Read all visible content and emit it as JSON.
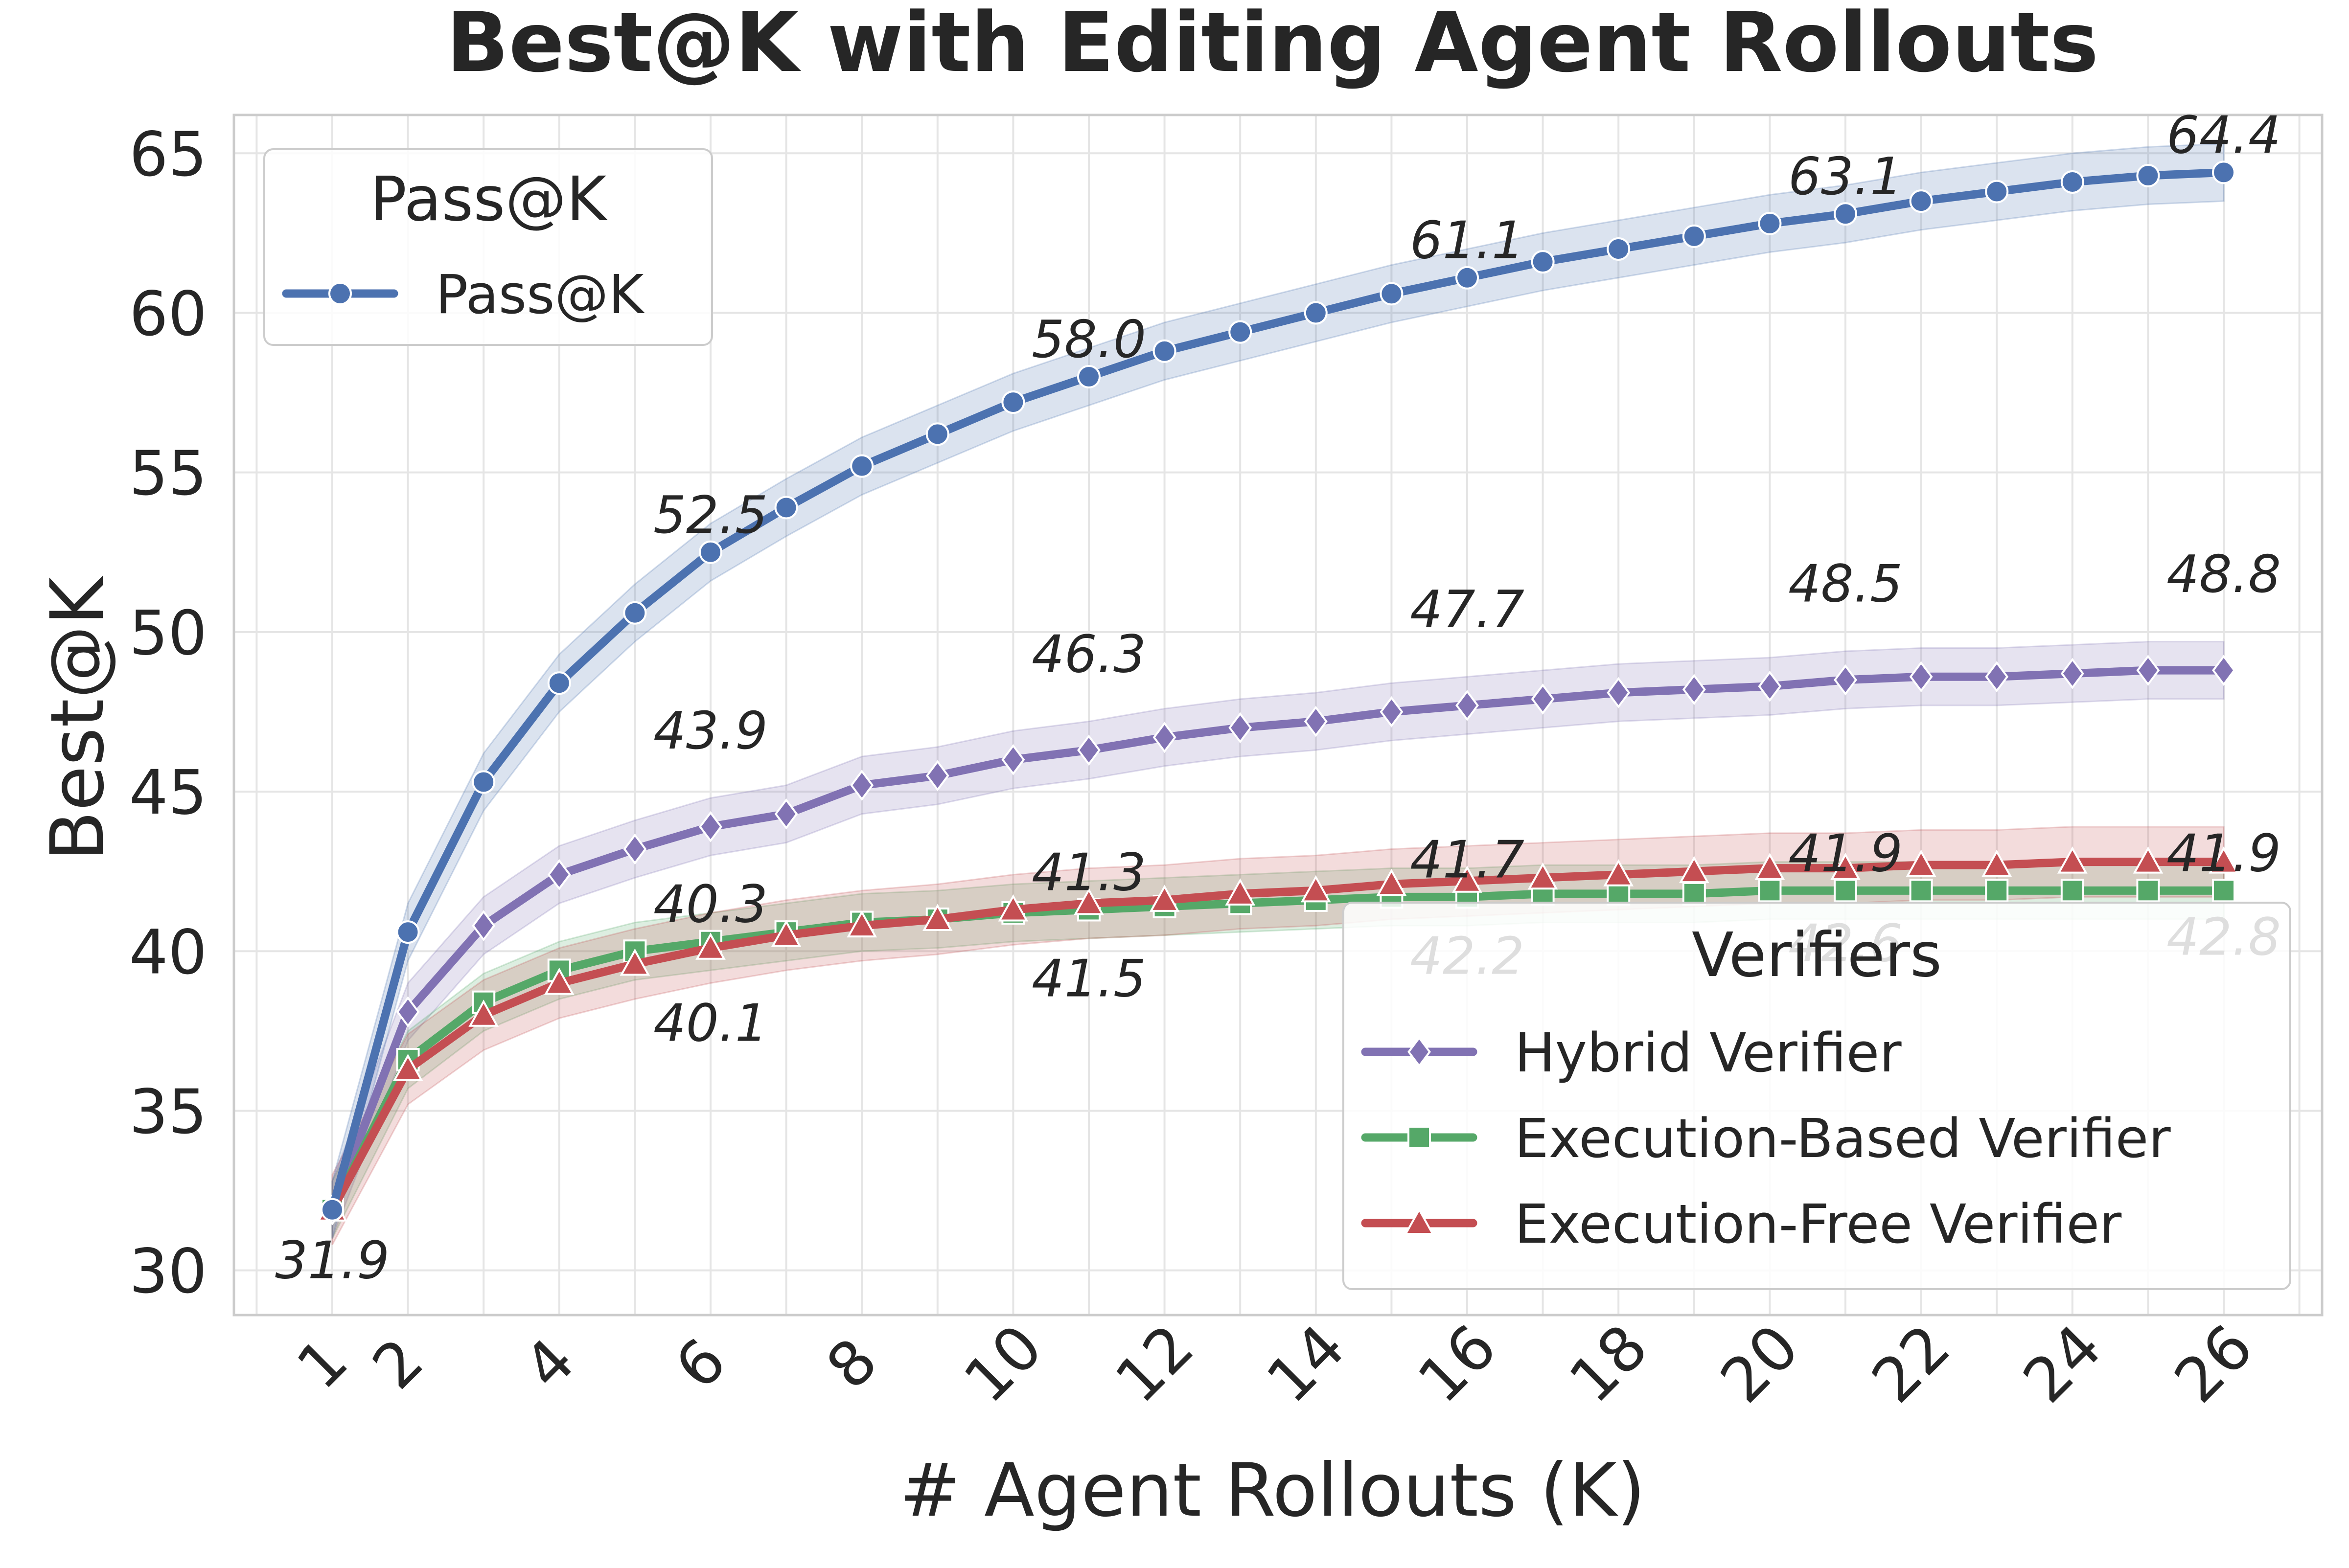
{
  "chart_data": {
    "type": "line",
    "title": "Best@K with Editing Agent Rollouts",
    "xlabel": "# Agent Rollouts (K)",
    "ylabel": "Best@K",
    "xlim": [
      -0.3,
      27.3
    ],
    "ylim": [
      28.6,
      66.2
    ],
    "xticks": [
      1,
      2,
      4,
      6,
      8,
      10,
      12,
      14,
      16,
      18,
      20,
      22,
      24,
      26
    ],
    "yticks": [
      30,
      35,
      40,
      45,
      50,
      55,
      60,
      65
    ],
    "grid": true,
    "x": [
      1,
      2,
      3,
      4,
      5,
      6,
      7,
      8,
      9,
      10,
      11,
      12,
      13,
      14,
      15,
      16,
      17,
      18,
      19,
      20,
      21,
      22,
      23,
      24,
      25,
      26
    ],
    "series": [
      {
        "name": "Pass@K",
        "group": "Pass@K",
        "color": "#4c72b0",
        "marker": "circle",
        "values": [
          31.9,
          40.6,
          45.3,
          48.4,
          50.6,
          52.5,
          53.9,
          55.2,
          56.2,
          57.2,
          58.0,
          58.8,
          59.4,
          60.0,
          60.6,
          61.1,
          61.6,
          62.0,
          62.4,
          62.8,
          63.1,
          63.5,
          63.8,
          64.1,
          64.3,
          64.4
        ],
        "band": 0.9
      },
      {
        "name": "Hybrid Verifier",
        "group": "Verifiers",
        "color": "#8172b3",
        "marker": "diamond",
        "values": [
          31.9,
          38.1,
          40.8,
          42.4,
          43.2,
          43.9,
          44.3,
          45.2,
          45.5,
          46.0,
          46.3,
          46.7,
          47.0,
          47.2,
          47.5,
          47.7,
          47.9,
          48.1,
          48.2,
          48.3,
          48.5,
          48.6,
          48.6,
          48.7,
          48.8,
          48.8
        ],
        "band": 0.9
      },
      {
        "name": "Execution-Based Verifier",
        "group": "Verifiers",
        "color": "#55a868",
        "marker": "square",
        "values": [
          31.9,
          36.6,
          38.4,
          39.4,
          40.0,
          40.3,
          40.6,
          40.9,
          41.0,
          41.2,
          41.3,
          41.4,
          41.5,
          41.6,
          41.7,
          41.7,
          41.8,
          41.8,
          41.8,
          41.9,
          41.9,
          41.9,
          41.9,
          41.9,
          41.9,
          41.9
        ],
        "band": 0.9
      },
      {
        "name": "Execution-Free Verifier",
        "group": "Verifiers",
        "color": "#c44e52",
        "marker": "triangle",
        "values": [
          31.9,
          36.3,
          38.0,
          39.0,
          39.6,
          40.1,
          40.5,
          40.8,
          41.0,
          41.3,
          41.5,
          41.6,
          41.8,
          41.9,
          42.1,
          42.2,
          42.3,
          42.4,
          42.5,
          42.6,
          42.6,
          42.7,
          42.7,
          42.8,
          42.8,
          42.8
        ],
        "band": 1.1
      }
    ],
    "annotations": [
      {
        "x": 1,
        "text": "31.9",
        "series": 0,
        "dy": 0,
        "dx": 0
      },
      {
        "x": 6,
        "text": "52.5",
        "series": 0
      },
      {
        "x": 11,
        "text": "58.0",
        "series": 0
      },
      {
        "x": 16,
        "text": "61.1",
        "series": 0
      },
      {
        "x": 21,
        "text": "63.1",
        "series": 0
      },
      {
        "x": 26,
        "text": "64.4",
        "series": 0
      },
      {
        "x": 6,
        "text": "43.9",
        "series": 1
      },
      {
        "x": 11,
        "text": "46.3",
        "series": 1
      },
      {
        "x": 16,
        "text": "47.7",
        "series": 1
      },
      {
        "x": 21,
        "text": "48.5",
        "series": 1
      },
      {
        "x": 26,
        "text": "48.8",
        "series": 1
      },
      {
        "x": 6,
        "text": "40.3",
        "series": 2
      },
      {
        "x": 11,
        "text": "41.3",
        "series": 2
      },
      {
        "x": 16,
        "text": "41.7",
        "series": 2
      },
      {
        "x": 21,
        "text": "41.9",
        "series": 2
      },
      {
        "x": 26,
        "text": "41.9",
        "series": 2
      },
      {
        "x": 6,
        "text": "40.1",
        "series": 3
      },
      {
        "x": 11,
        "text": "41.5",
        "series": 3
      },
      {
        "x": 16,
        "text": "42.2",
        "series": 3
      },
      {
        "x": 21,
        "text": "42.6",
        "series": 3
      },
      {
        "x": 26,
        "text": "42.8",
        "series": 3
      }
    ],
    "legends": [
      {
        "title": "Pass@K",
        "placement": "top-left",
        "entries": [
          "Pass@K"
        ]
      },
      {
        "title": "Verifiers",
        "placement": "bottom-right",
        "entries": [
          "Hybrid Verifier",
          "Execution-Based Verifier",
          "Execution-Free Verifier"
        ]
      }
    ],
    "grid_color": "#e5e5e5",
    "text_color": "#262626"
  }
}
